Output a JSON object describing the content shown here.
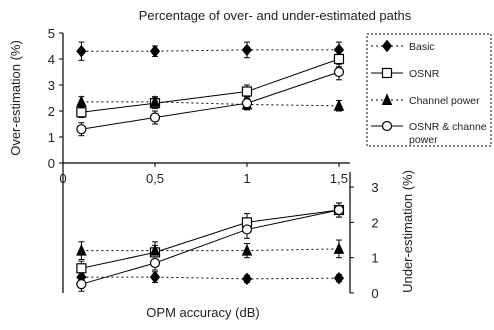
{
  "chart_data": {
    "type": "line",
    "title": "Percentage of over- and under-estimated paths",
    "xlabel": "OPM accuracy (dB)",
    "x": [
      0.1,
      0.5,
      1.0,
      1.5
    ],
    "x_ticks": [
      "0",
      "0,5",
      "1",
      "1,5"
    ],
    "xlim": [
      0,
      1.56
    ],
    "upper": {
      "ylabel": "Over-estimation (%)",
      "ylim": [
        0,
        5
      ],
      "y_ticks": [
        "0",
        "1",
        "2",
        "3",
        "4",
        "5"
      ],
      "series": [
        {
          "name": "Basic",
          "marker": "diamond",
          "line": "dotted",
          "values": [
            4.3,
            4.3,
            4.35,
            4.35
          ],
          "err": [
            0.35,
            0.2,
            0.3,
            0.3
          ]
        },
        {
          "name": "OSNR",
          "marker": "square-open",
          "line": "solid",
          "values": [
            1.95,
            2.3,
            2.75,
            4.0
          ],
          "err": [
            0.2,
            0.2,
            0.25,
            0.3
          ]
        },
        {
          "name": "Channel power",
          "marker": "triangle",
          "line": "dotted",
          "values": [
            2.35,
            2.35,
            2.25,
            2.2
          ],
          "err": [
            0.2,
            0.2,
            0.2,
            0.2
          ]
        },
        {
          "name": "OSNR & channel power",
          "marker": "circle-open",
          "line": "solid",
          "values": [
            1.3,
            1.75,
            2.3,
            3.5
          ],
          "err": [
            0.25,
            0.25,
            0.25,
            0.3
          ]
        }
      ]
    },
    "lower": {
      "ylabel": "Under-estimation (%)",
      "ylim": [
        0,
        3.2
      ],
      "y_ticks": [
        "0",
        "1",
        "2",
        "3"
      ],
      "series": [
        {
          "name": "Basic",
          "marker": "diamond",
          "line": "dotted",
          "values": [
            0.45,
            0.45,
            0.4,
            0.42
          ],
          "err": [
            0.15,
            0.15,
            0.1,
            0.1
          ]
        },
        {
          "name": "OSNR",
          "marker": "square-open",
          "line": "solid",
          "values": [
            0.7,
            1.15,
            2.0,
            2.35
          ],
          "err": [
            0.2,
            0.2,
            0.25,
            0.2
          ]
        },
        {
          "name": "Channel power",
          "marker": "triangle",
          "line": "dotted",
          "values": [
            1.2,
            1.2,
            1.2,
            1.25
          ],
          "err": [
            0.25,
            0.25,
            0.2,
            0.25
          ]
        },
        {
          "name": "OSNR & channel power",
          "marker": "circle-open",
          "line": "solid",
          "values": [
            0.25,
            0.85,
            1.8,
            2.35
          ],
          "err": [
            0.2,
            0.2,
            0.25,
            0.2
          ]
        }
      ]
    },
    "legend": {
      "placement": "right",
      "entries": [
        {
          "marker": "diamond",
          "line": "dotted",
          "lines": [
            "Basic"
          ]
        },
        {
          "marker": "square-open",
          "line": "solid",
          "lines": [
            "OSNR"
          ]
        },
        {
          "marker": "triangle",
          "line": "dotted",
          "lines": [
            "Channel power"
          ]
        },
        {
          "marker": "circle-open",
          "line": "solid",
          "lines": [
            "OSNR & channe",
            "power"
          ]
        }
      ]
    }
  }
}
